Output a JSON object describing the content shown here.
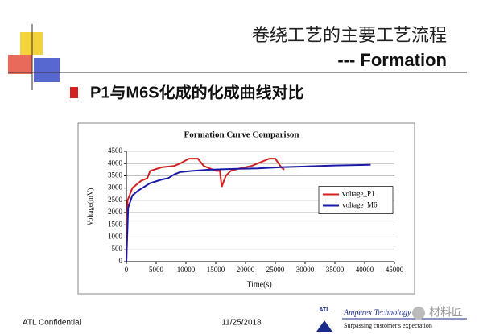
{
  "slide": {
    "title": "卷绕工艺的主要工艺流程",
    "subtitle": "---  Formation",
    "bullet": "P1与M6S化成的化成曲线对比",
    "footer_left": "ATL Confidential",
    "footer_date": "11/25/2018",
    "company": "Amperex Technology Li",
    "tagline": "Surpassing customer's expectation",
    "logo": "ATL",
    "watermark": "材料匠"
  },
  "chart_data": {
    "type": "line",
    "title": "Formation Curve Comparison",
    "x_label": "Time(s)",
    "y_label": "Voltage(mV)",
    "xlim": [
      0,
      45000
    ],
    "xticks": [
      0,
      5000,
      10000,
      15000,
      20000,
      25000,
      30000,
      35000,
      40000,
      45000
    ],
    "ylim": [
      0,
      4500
    ],
    "yticks": [
      0,
      500,
      1000,
      1500,
      2000,
      2500,
      3000,
      3500,
      4000,
      4500
    ],
    "grid": true,
    "legend": "right",
    "series": [
      {
        "name": "voltage_P1",
        "color": "#d42020",
        "x": [
          0,
          200,
          1000,
          2500,
          3500,
          4000,
          6000,
          8000,
          9000,
          10500,
          12000,
          13000,
          15000,
          15700,
          16000,
          16700,
          17500,
          19000,
          21000,
          22000,
          24000,
          25000,
          26000,
          26500
        ],
        "values": [
          0,
          2500,
          3000,
          3300,
          3400,
          3700,
          3850,
          3900,
          4000,
          4200,
          4200,
          3900,
          3700,
          3700,
          3050,
          3500,
          3700,
          3800,
          3900,
          4000,
          4200,
          4200,
          3850,
          3750
        ]
      },
      {
        "name": "voltage_M6",
        "color": "#1a1aa8",
        "x": [
          0,
          300,
          1000,
          2000,
          3000,
          4000,
          6000,
          7000,
          8000,
          9000,
          11000,
          14000,
          18000,
          22000,
          26000,
          30000,
          35000,
          41000
        ],
        "values": [
          0,
          2200,
          2700,
          2900,
          3050,
          3200,
          3350,
          3400,
          3550,
          3650,
          3700,
          3750,
          3780,
          3800,
          3850,
          3880,
          3920,
          3950
        ]
      }
    ]
  }
}
